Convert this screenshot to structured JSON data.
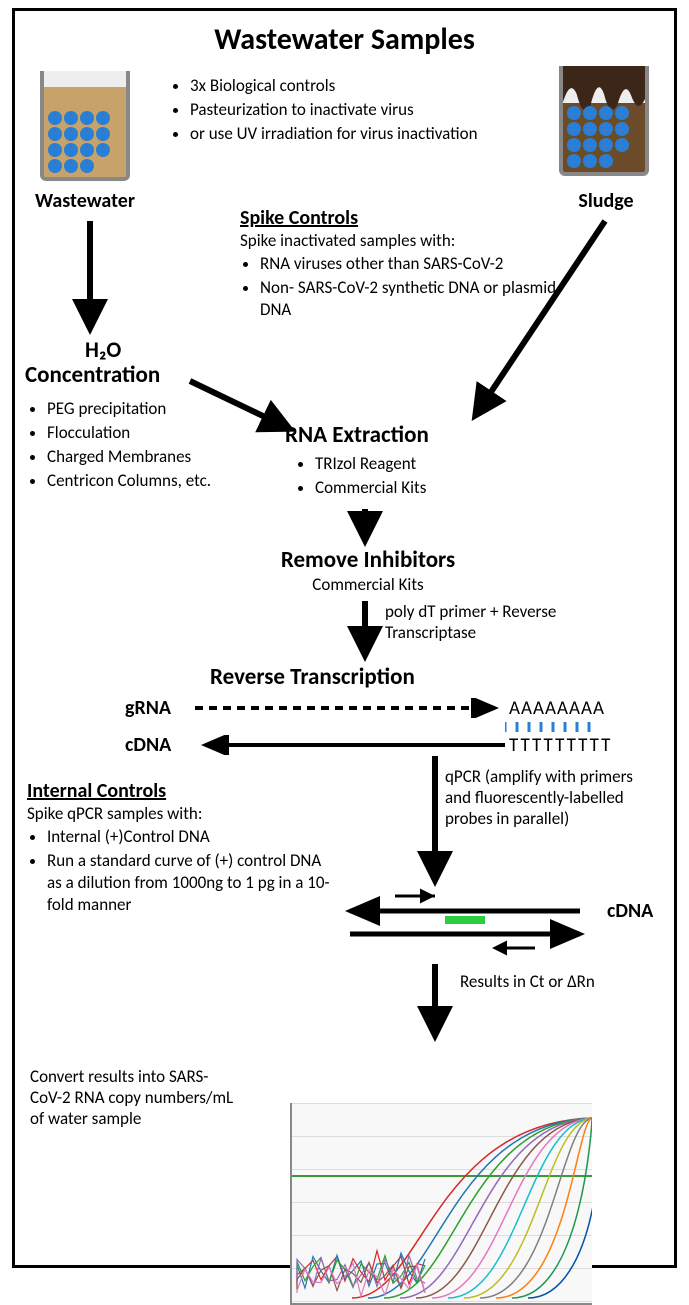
{
  "title": "Wastewater Samples",
  "sample_notes": [
    "3x Biological controls",
    "Pasteurization to inactivate virus",
    "or use UV irradiation for virus inactivation"
  ],
  "samples": {
    "wastewater_label": "Wastewater",
    "sludge_label": "Sludge",
    "wastewater_color": "#c7a36a",
    "sludge_upper_color": "#3b2617",
    "sludge_lower_color": "#6b4b2a",
    "virus_color": "#2a7fd4"
  },
  "spike_controls": {
    "heading": "Spike Controls",
    "intro": "Spike inactivated samples with:",
    "items": [
      "RNA viruses other than SARS-CoV-2",
      "Non- SARS-CoV-2 synthetic DNA or plasmid DNA"
    ]
  },
  "concentration": {
    "h2o_label": "H₂O",
    "heading": "Concentration",
    "items": [
      "PEG precipitation",
      "Flocculation",
      "Charged Membranes",
      "Centricon Columns, etc."
    ]
  },
  "rna_extraction": {
    "heading": "RNA Extraction",
    "items": [
      "TRIzol Reagent",
      "Commercial Kits"
    ]
  },
  "remove_inhibitors": {
    "heading": "Remove Inhibitors",
    "sub": "Commercial Kits"
  },
  "rt": {
    "note": "poly dT primer + Reverse Transcriptase",
    "heading": "Reverse Transcription",
    "grna_label": "gRNA",
    "cdna_label": "cDNA",
    "polyA": "AAAAAAAA",
    "polyT": "TTTTTTTTT"
  },
  "internal_controls": {
    "heading": "Internal Controls",
    "intro": "Spike qPCR samples with:",
    "items": [
      "Internal (+)Control DNA",
      "Run a standard curve of (+) control DNA as a dilution from 1000ng to 1 pg in a 10-fold manner"
    ]
  },
  "qpcr": {
    "note": "qPCR (amplify with primers and fluorescently-labelled probes in parallel)",
    "cdna_label": "cDNA",
    "results_label": "Results in Ct or ΔRn",
    "probe_color": "#2ecc40"
  },
  "final_note": "Convert results into SARS-CoV-2 RNA copy numbers/mL of water sample",
  "chart": {
    "threshold_color": "#3a9a3a",
    "background": "#f8f8f8",
    "grid_color": "#dddddd",
    "curve_colors": [
      "#d62728",
      "#1f77b4",
      "#2ca02c",
      "#9467bd",
      "#8c564b",
      "#e377c2",
      "#17becf",
      "#bcbd22",
      "#7f7f7f",
      "#ff7f0e",
      "#1a9850",
      "#0055aa"
    ],
    "noise_colors": [
      "#d62728",
      "#1f77b4",
      "#2ca02c",
      "#9467bd",
      "#8c564b",
      "#e377c2"
    ]
  },
  "arrows": {
    "color": "#000000",
    "stroke_width": 5,
    "dash": "8,6"
  }
}
